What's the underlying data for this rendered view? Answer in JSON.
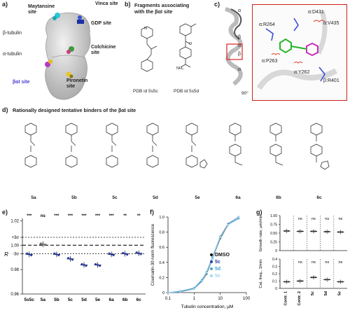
{
  "panel_a": {
    "label": "a)",
    "sites": {
      "maytansine": "Maytansine site",
      "vinca": "Vinca site",
      "gdp": "GDP site",
      "colchicine": "Colchicine site",
      "bal": "βαI site",
      "pironetin": "Pironetin site"
    },
    "beta_tubulin": "β-tubulin",
    "alpha_tubulin": "α-tubulin"
  },
  "panel_b": {
    "label": "b)",
    "title_line1": "Fragments associating",
    "title_line2": "with the βαI site",
    "pdb1": "PDB id 5s5c",
    "pdb2": "PDB id 5s5d"
  },
  "panel_c": {
    "label": "c)",
    "rotation": "90°",
    "residues": [
      "α:D431",
      "α:V435",
      "α:R264",
      "α:P263",
      "α:Y262",
      "β:R401"
    ],
    "chain_labels": [
      "α",
      "β",
      "α",
      "β",
      "α"
    ]
  },
  "panel_d": {
    "label": "d)",
    "title": "Rationally designed tentative binders of the βαI site",
    "compounds": [
      "5a",
      "5b",
      "5c",
      "5d",
      "5e",
      "6a",
      "6b",
      "6c"
    ]
  },
  "panel_e": {
    "label": "e)",
    "ylabel": "R",
    "yticks": [
      "1.02",
      "+3σ",
      "1.00",
      "-3σ",
      "0.98",
      "0.96"
    ],
    "significance": [
      "***",
      "ns",
      "***",
      "***",
      "***",
      "***",
      "***",
      "**",
      "**"
    ],
    "categories": [
      "5s5c",
      "5a",
      "5b",
      "5c",
      "5d",
      "5e",
      "6a",
      "6b",
      "6c"
    ]
  },
  "panel_f": {
    "label": "f)",
    "ylabel": "Coumarin-30 norm fluorescence",
    "xlabel": "Tubulin concentration, µM",
    "xticks": [
      "0.1",
      "1",
      "10",
      "100"
    ],
    "yticks": [
      "0",
      "0.2",
      "0.4",
      "0.6",
      "0.8",
      "1.0"
    ],
    "legend": [
      {
        "name": "DMSO",
        "color": "#111111"
      },
      {
        "name": "5c",
        "color": "#2b3fa8"
      },
      {
        "name": "5d",
        "color": "#4aa7d6"
      },
      {
        "name": "5e",
        "color": "#9fd9ee"
      }
    ]
  },
  "panel_g": {
    "label": "g)",
    "top_ylabel": "Growth rate, µm/min",
    "bottom_ylabel": "Cat. freq., 1/min",
    "categories": [
      "Contr. 1",
      "Contr. 2",
      "5c",
      "5d",
      "5e"
    ],
    "top_sig": [
      "ns",
      "ns",
      "ns",
      "ns"
    ],
    "bottom_sig": [
      "ns",
      "ns",
      "ns",
      "ns"
    ],
    "top_yticks": [
      "0",
      "0.25",
      "0.50",
      "0.75",
      "1.00"
    ],
    "bottom_yticks": [
      "0",
      "0.1",
      "0.2",
      "0.3",
      "0.4"
    ]
  },
  "chart_data": [
    {
      "type": "scatter",
      "ylabel": "R",
      "categories": [
        "5s5c",
        "5a",
        "5b",
        "5c",
        "5d",
        "5e",
        "6a",
        "6b",
        "6c"
      ],
      "values": [
        0.9925,
        1.0008,
        0.9925,
        0.9888,
        0.9838,
        0.9838,
        0.9925,
        0.993,
        0.9934
      ],
      "ylim": [
        0.96,
        1.022
      ],
      "reference_lines": {
        "plus3sigma": 1.0065,
        "mean": 1.0,
        "minus3sigma": 0.993
      }
    },
    {
      "type": "line",
      "xlabel": "Tubulin concentration, µM",
      "ylabel": "Coumarin-30 norm fluorescence",
      "xscale": "log",
      "series": [
        {
          "name": "DMSO",
          "x": [
            0.1,
            0.3,
            1,
            2,
            3,
            5,
            10,
            20,
            50
          ],
          "y": [
            0.0,
            0.01,
            0.05,
            0.15,
            0.25,
            0.45,
            0.72,
            0.9,
            1.0
          ]
        },
        {
          "name": "5c",
          "x": [
            0.1,
            0.3,
            1,
            2,
            3,
            5,
            10,
            20,
            50
          ],
          "y": [
            0.0,
            0.01,
            0.06,
            0.16,
            0.27,
            0.46,
            0.74,
            0.91,
            1.0
          ]
        },
        {
          "name": "5d",
          "x": [
            0.1,
            0.3,
            1,
            2,
            3,
            5,
            10,
            20,
            50
          ],
          "y": [
            0.0,
            0.02,
            0.06,
            0.17,
            0.27,
            0.47,
            0.74,
            0.9,
            0.98
          ]
        },
        {
          "name": "5e",
          "x": [
            0.1,
            0.3,
            1,
            2,
            3,
            5,
            10,
            20,
            50
          ],
          "y": [
            0.0,
            0.01,
            0.05,
            0.15,
            0.26,
            0.45,
            0.73,
            0.9,
            1.0
          ]
        }
      ]
    },
    {
      "type": "scatter",
      "ylabel": "Growth rate, µm/min",
      "categories": [
        "Contr. 1",
        "Contr. 2",
        "5c",
        "5d",
        "5e"
      ],
      "values": [
        0.56,
        0.55,
        0.55,
        0.54,
        0.53
      ]
    },
    {
      "type": "scatter",
      "ylabel": "Cat. freq., 1/min",
      "categories": [
        "Contr. 1",
        "Contr. 2",
        "5c",
        "5d",
        "5e"
      ],
      "values": [
        0.09,
        0.1,
        0.15,
        0.12,
        0.09
      ]
    }
  ]
}
